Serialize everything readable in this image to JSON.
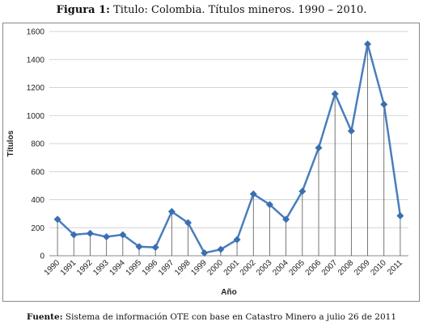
{
  "caption": {
    "label": "Figura 1:",
    "text": " Titulo: Colombia. Títulos mineros. 1990 – 2010."
  },
  "source": {
    "label": "Fuente:",
    "text": " Sistema de información OTE con base en Catastro Minero a julio 26 de 2011"
  },
  "chart_data": {
    "type": "line",
    "xlabel": "Año",
    "ylabel": "Títulos",
    "ylim": [
      0,
      1600
    ],
    "yticks": [
      0,
      200,
      400,
      600,
      800,
      1000,
      1200,
      1400,
      1600
    ],
    "grid": true,
    "legend": "none",
    "categories": [
      "1990",
      "1991",
      "1992",
      "1993",
      "1994",
      "1995",
      "1996",
      "1997",
      "1998",
      "1999",
      "2000",
      "2001",
      "2002",
      "2003",
      "2004",
      "2005",
      "2006",
      "2007",
      "2008",
      "2009",
      "2010",
      "2011"
    ],
    "series": [
      {
        "values": [
          260,
          150,
          160,
          135,
          150,
          65,
          60,
          315,
          235,
          20,
          45,
          115,
          440,
          365,
          260,
          460,
          770,
          1155,
          890,
          1510,
          1080,
          285
        ]
      }
    ],
    "colors": {
      "line": "#4a7ebb",
      "marker": "#3a6fb0",
      "drop_lines": "#555555",
      "grid": "#d4d4d4"
    }
  }
}
